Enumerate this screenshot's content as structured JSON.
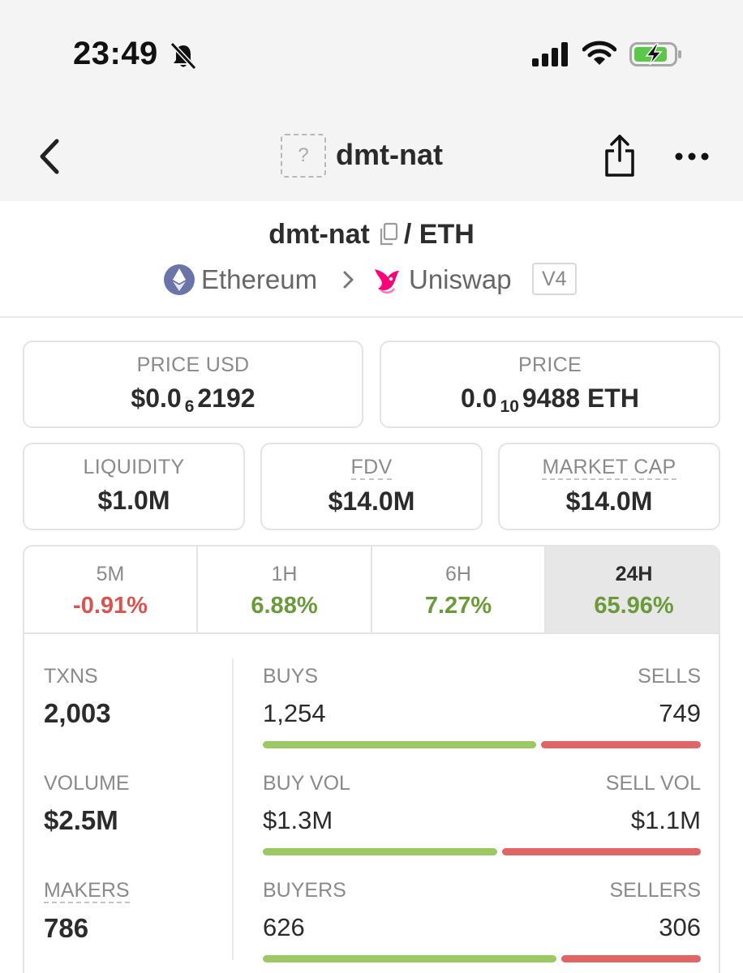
{
  "status_bar": {
    "time": "23:49"
  },
  "nav": {
    "title": "dmt-nat",
    "token_placeholder": "?"
  },
  "pair": {
    "base": "dmt-nat",
    "quote": "/ ETH",
    "chain": "Ethereum",
    "dex": "Uniswap",
    "version": "V4"
  },
  "prices": {
    "usd": {
      "label": "PRICE USD",
      "prefix": "$0.0",
      "zeros": "6",
      "digits": "2192"
    },
    "native": {
      "label": "PRICE",
      "prefix": "0.0",
      "zeros": "10",
      "digits": "9488 ETH"
    }
  },
  "metrics": {
    "liquidity": {
      "label": "LIQUIDITY",
      "value": "$1.0M"
    },
    "fdv": {
      "label": "FDV",
      "value": "$14.0M"
    },
    "market_cap": {
      "label": "MARKET CAP",
      "value": "$14.0M"
    }
  },
  "timeframes": [
    {
      "label": "5M",
      "change": "-0.91%"
    },
    {
      "label": "1H",
      "change": "6.88%"
    },
    {
      "label": "6H",
      "change": "7.27%"
    },
    {
      "label": "24H",
      "change": "65.96%"
    }
  ],
  "active_timeframe": "24H",
  "colors": {
    "positive": "#6b9a3a",
    "negative": "#d9534f",
    "buy_bar": "#9bc862",
    "sell_bar": "#e06666"
  },
  "stats": {
    "txns": {
      "label": "TXNS",
      "value": "2,003"
    },
    "volume": {
      "label": "VOLUME",
      "value": "$2.5M"
    },
    "makers": {
      "label": "MAKERS",
      "value": "786"
    }
  },
  "splits": {
    "txns": {
      "left_label": "BUYS",
      "left_value": "1,254",
      "right_label": "SELLS",
      "right_value": "749"
    },
    "volume": {
      "left_label": "BUY VOL",
      "left_value": "$1.3M",
      "right_label": "SELL VOL",
      "right_value": "$1.1M"
    },
    "makers": {
      "left_label": "BUYERS",
      "left_value": "626",
      "right_label": "SELLERS",
      "right_value": "306"
    }
  }
}
